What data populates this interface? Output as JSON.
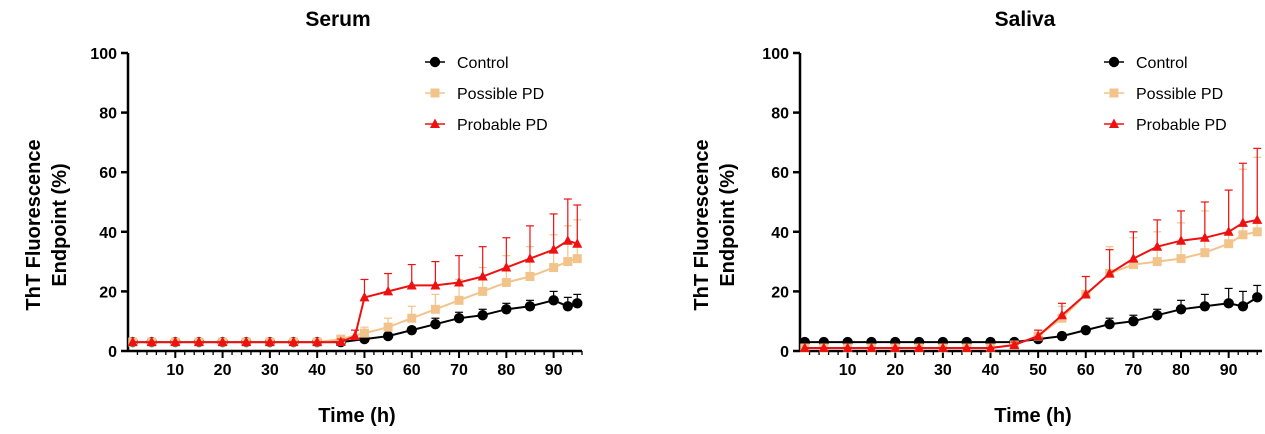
{
  "chart_data": [
    {
      "type": "line",
      "title": "Serum",
      "xlabel": "Time (h)",
      "ylabel": [
        "ThT Fluorescence",
        "Endpoint (%)"
      ],
      "xlim": [
        0,
        96
      ],
      "ylim": [
        0,
        100
      ],
      "xticks": [
        "10",
        "20",
        "30",
        "40",
        "50",
        "60",
        "70",
        "80",
        "90"
      ],
      "yticks": [
        "0",
        "20",
        "40",
        "60",
        "80",
        "100"
      ],
      "legend_position": "top-right",
      "grid": false,
      "error_bars": "upper",
      "series": [
        {
          "name": "Control",
          "color": "#000000",
          "marker": "circle",
          "points": [
            [
              1,
              3
            ],
            [
              5,
              3
            ],
            [
              10,
              3
            ],
            [
              15,
              3
            ],
            [
              20,
              3
            ],
            [
              25,
              3
            ],
            [
              30,
              3
            ],
            [
              35,
              3
            ],
            [
              40,
              3
            ],
            [
              45,
              3
            ],
            [
              50,
              4
            ],
            [
              55,
              5
            ],
            [
              60,
              7
            ],
            [
              65,
              9
            ],
            [
              70,
              11
            ],
            [
              75,
              12
            ],
            [
              80,
              14
            ],
            [
              85,
              15
            ],
            [
              90,
              17
            ],
            [
              93,
              15
            ],
            [
              95,
              16
            ]
          ],
          "err": [
            0.5,
            0.5,
            0.5,
            0.5,
            0.5,
            0.5,
            0.5,
            0.5,
            0.5,
            0.5,
            1,
            1,
            1,
            2,
            2,
            2,
            2,
            2,
            3,
            3,
            3
          ]
        },
        {
          "name": "Possible PD",
          "color": "#f2c48c",
          "marker": "square",
          "points": [
            [
              1,
              3
            ],
            [
              5,
              3
            ],
            [
              10,
              3
            ],
            [
              15,
              3
            ],
            [
              20,
              3
            ],
            [
              25,
              3
            ],
            [
              30,
              3
            ],
            [
              35,
              3
            ],
            [
              40,
              3
            ],
            [
              45,
              4
            ],
            [
              50,
              6
            ],
            [
              55,
              8
            ],
            [
              60,
              11
            ],
            [
              65,
              14
            ],
            [
              70,
              17
            ],
            [
              75,
              20
            ],
            [
              80,
              23
            ],
            [
              85,
              25
            ],
            [
              90,
              28
            ],
            [
              93,
              30
            ],
            [
              95,
              31
            ]
          ],
          "err": [
            0.5,
            0.5,
            0.5,
            0.5,
            0.5,
            0.5,
            0.5,
            0.5,
            0.5,
            1,
            2,
            3,
            4,
            5,
            7,
            8,
            9,
            10,
            11,
            12,
            13
          ]
        },
        {
          "name": "Probable PD",
          "color": "#ee1111",
          "marker": "triangle",
          "points": [
            [
              1,
              3
            ],
            [
              5,
              3
            ],
            [
              10,
              3
            ],
            [
              15,
              3
            ],
            [
              20,
              3
            ],
            [
              25,
              3
            ],
            [
              30,
              3
            ],
            [
              35,
              3
            ],
            [
              40,
              3
            ],
            [
              45,
              3
            ],
            [
              48,
              5
            ],
            [
              50,
              18
            ],
            [
              55,
              20
            ],
            [
              60,
              22
            ],
            [
              65,
              22
            ],
            [
              70,
              23
            ],
            [
              75,
              25
            ],
            [
              80,
              28
            ],
            [
              85,
              31
            ],
            [
              90,
              34
            ],
            [
              93,
              37
            ],
            [
              95,
              36
            ]
          ],
          "err": [
            0.5,
            0.5,
            0.5,
            0.5,
            0.5,
            0.5,
            0.5,
            0.5,
            0.5,
            1,
            2,
            6,
            6,
            7,
            8,
            9,
            10,
            10,
            11,
            12,
            14,
            13
          ]
        }
      ]
    },
    {
      "type": "line",
      "title": "Saliva",
      "xlabel": "Time (h)",
      "ylabel": [
        "ThT Fluorescence",
        "Endpoint (%)"
      ],
      "xlim": [
        0,
        97
      ],
      "ylim": [
        0,
        100
      ],
      "xticks": [
        "10",
        "20",
        "30",
        "40",
        "50",
        "60",
        "70",
        "80",
        "90"
      ],
      "yticks": [
        "0",
        "20",
        "40",
        "60",
        "80",
        "100"
      ],
      "legend_position": "top-right",
      "grid": false,
      "error_bars": "upper",
      "series": [
        {
          "name": "Control",
          "color": "#000000",
          "marker": "circle",
          "points": [
            [
              1,
              3
            ],
            [
              5,
              3
            ],
            [
              10,
              3
            ],
            [
              15,
              3
            ],
            [
              20,
              3
            ],
            [
              25,
              3
            ],
            [
              30,
              3
            ],
            [
              35,
              3
            ],
            [
              40,
              3
            ],
            [
              45,
              3
            ],
            [
              50,
              4
            ],
            [
              55,
              5
            ],
            [
              60,
              7
            ],
            [
              65,
              9
            ],
            [
              70,
              10
            ],
            [
              75,
              12
            ],
            [
              80,
              14
            ],
            [
              85,
              15
            ],
            [
              90,
              16
            ],
            [
              93,
              15
            ],
            [
              96,
              18
            ]
          ],
          "err": [
            0.5,
            0.5,
            0.5,
            0.5,
            0.5,
            0.5,
            0.5,
            0.5,
            0.5,
            0.5,
            1,
            1,
            1,
            2,
            2,
            2,
            3,
            4,
            5,
            5,
            4
          ]
        },
        {
          "name": "Possible PD",
          "color": "#f2c48c",
          "marker": "square",
          "points": [
            [
              1,
              1
            ],
            [
              5,
              1
            ],
            [
              10,
              1
            ],
            [
              15,
              1
            ],
            [
              20,
              1
            ],
            [
              25,
              1
            ],
            [
              30,
              1
            ],
            [
              35,
              1
            ],
            [
              40,
              1
            ],
            [
              45,
              2
            ],
            [
              50,
              5
            ],
            [
              55,
              11
            ],
            [
              60,
              19
            ],
            [
              65,
              26
            ],
            [
              70,
              29
            ],
            [
              75,
              30
            ],
            [
              80,
              31
            ],
            [
              85,
              33
            ],
            [
              90,
              36
            ],
            [
              93,
              39
            ],
            [
              96,
              40
            ]
          ],
          "err": [
            0.5,
            0.5,
            0.5,
            0.5,
            0.5,
            0.5,
            0.5,
            0.5,
            0.5,
            1,
            2,
            4,
            6,
            9,
            9,
            10,
            12,
            14,
            18,
            22,
            25
          ]
        },
        {
          "name": "Probable PD",
          "color": "#ee1111",
          "marker": "triangle",
          "points": [
            [
              1,
              1
            ],
            [
              5,
              1
            ],
            [
              10,
              1
            ],
            [
              15,
              1
            ],
            [
              20,
              1
            ],
            [
              25,
              1
            ],
            [
              30,
              1
            ],
            [
              35,
              1
            ],
            [
              40,
              1
            ],
            [
              45,
              2
            ],
            [
              50,
              5
            ],
            [
              55,
              12
            ],
            [
              60,
              19
            ],
            [
              65,
              26
            ],
            [
              70,
              31
            ],
            [
              75,
              35
            ],
            [
              80,
              37
            ],
            [
              85,
              38
            ],
            [
              90,
              40
            ],
            [
              93,
              43
            ],
            [
              96,
              44
            ]
          ],
          "err": [
            0.5,
            0.5,
            0.5,
            0.5,
            0.5,
            0.5,
            0.5,
            0.5,
            0.5,
            1,
            2,
            4,
            6,
            8,
            9,
            9,
            10,
            12,
            14,
            20,
            24
          ]
        }
      ]
    }
  ]
}
